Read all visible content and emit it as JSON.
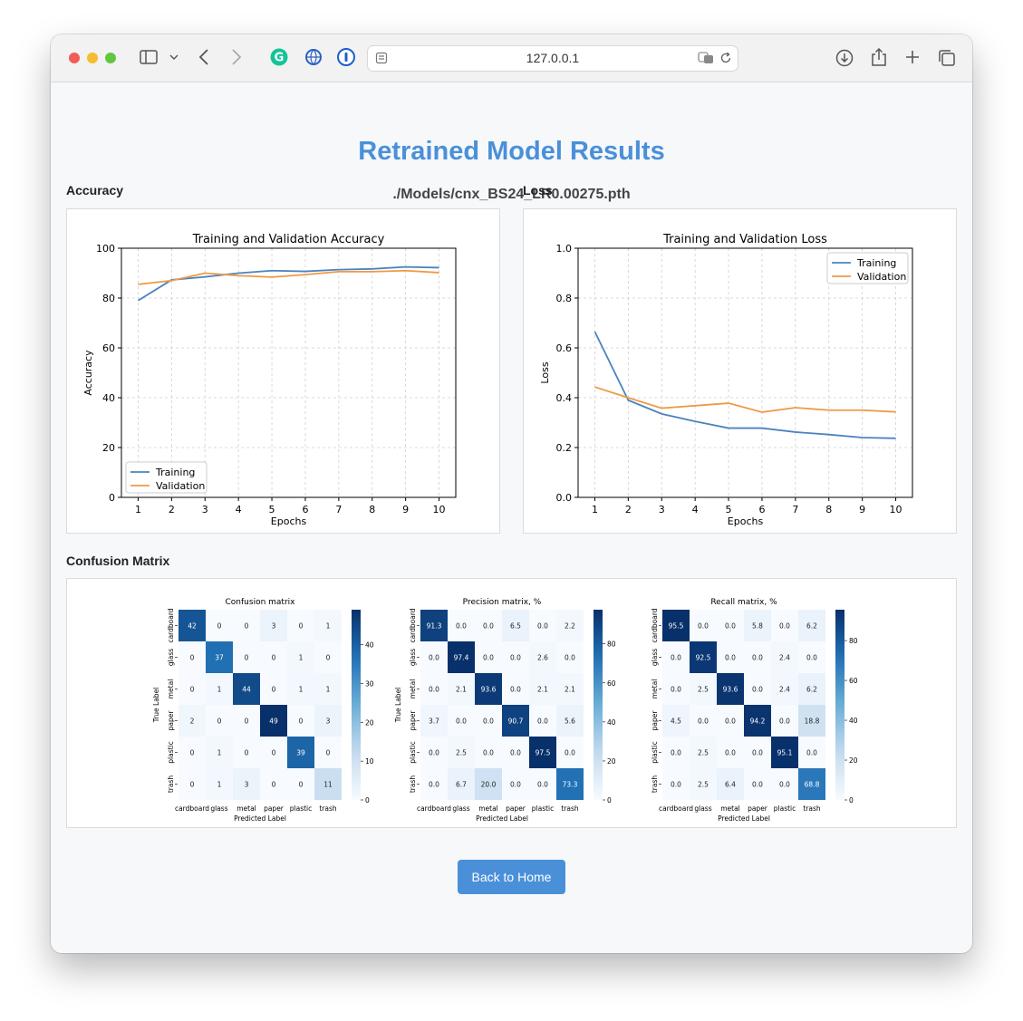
{
  "browser": {
    "url": "127.0.0.1",
    "traffic_colors": [
      "#ee5e56",
      "#f5bd2f",
      "#5fc83e"
    ]
  },
  "page": {
    "title": "Retrained Model Results",
    "model_path": "./Models/cnx_BS24_LR0.00275.pth",
    "accuracy_label": "Accuracy",
    "loss_label": "Loss",
    "confusion_label": "Confusion Matrix",
    "back_button": "Back to Home"
  },
  "colors": {
    "accent": "#4a90d9",
    "training": "#4a84bf",
    "validation": "#ee9a45"
  },
  "chart_data": [
    {
      "type": "line",
      "title": "Training and Validation Accuracy",
      "xlabel": "Epochs",
      "ylabel": "Accuracy",
      "x": [
        1,
        2,
        3,
        4,
        5,
        6,
        7,
        8,
        9,
        10
      ],
      "xlim": [
        0.5,
        10.5
      ],
      "ylim": [
        0,
        100
      ],
      "yticks": [
        0,
        20,
        40,
        60,
        80,
        100
      ],
      "grid": true,
      "legend": "lower-left",
      "series": [
        {
          "name": "Training",
          "values": [
            79,
            87.3,
            88.5,
            90,
            91,
            90.7,
            91.4,
            91.7,
            92.5,
            92.2
          ]
        },
        {
          "name": "Validation",
          "values": [
            85.5,
            87,
            90,
            89,
            88.4,
            89.4,
            90.6,
            90.6,
            91,
            90.2
          ]
        }
      ]
    },
    {
      "type": "line",
      "title": "Training and Validation Loss",
      "xlabel": "Epochs",
      "ylabel": "Loss",
      "x": [
        1,
        2,
        3,
        4,
        5,
        6,
        7,
        8,
        9,
        10
      ],
      "xlim": [
        0.5,
        10.5
      ],
      "ylim": [
        0,
        1.0
      ],
      "yticks": [
        "0.0",
        "0.2",
        "0.4",
        "0.6",
        "0.8",
        "1.0"
      ],
      "grid": true,
      "legend": "upper-right",
      "series": [
        {
          "name": "Training",
          "values": [
            0.665,
            0.39,
            0.335,
            0.305,
            0.278,
            0.278,
            0.262,
            0.252,
            0.24,
            0.237
          ]
        },
        {
          "name": "Validation",
          "values": [
            0.443,
            0.4,
            0.358,
            0.368,
            0.378,
            0.342,
            0.36,
            0.35,
            0.35,
            0.343
          ]
        }
      ]
    },
    {
      "type": "heatmap",
      "title": "Confusion matrix",
      "xlabel": "Predicted Label",
      "ylabel": "True Label",
      "labels": [
        "cardboard",
        "glass",
        "metal",
        "paper",
        "plastic",
        "trash"
      ],
      "colorbar_ticks": [
        0,
        10,
        20,
        30,
        40
      ],
      "vmax": 49,
      "values": [
        [
          "42",
          "0",
          "0",
          "3",
          "0",
          "1"
        ],
        [
          "0",
          "37",
          "0",
          "0",
          "1",
          "0"
        ],
        [
          "0",
          "1",
          "44",
          "0",
          "1",
          "1"
        ],
        [
          "2",
          "0",
          "0",
          "49",
          "0",
          "3"
        ],
        [
          "0",
          "1",
          "0",
          "0",
          "39",
          "0"
        ],
        [
          "0",
          "1",
          "3",
          "0",
          "0",
          "11"
        ]
      ]
    },
    {
      "type": "heatmap",
      "title": "Precision matrix, %",
      "xlabel": "Predicted Label",
      "ylabel": "True Label",
      "labels": [
        "cardboard",
        "glass",
        "metal",
        "paper",
        "plastic",
        "trash"
      ],
      "colorbar_ticks": [
        0,
        20,
        40,
        60,
        80
      ],
      "vmax": 97.5,
      "values": [
        [
          "91.3",
          "0.0",
          "0.0",
          "6.5",
          "0.0",
          "2.2"
        ],
        [
          "0.0",
          "97.4",
          "0.0",
          "0.0",
          "2.6",
          "0.0"
        ],
        [
          "0.0",
          "2.1",
          "93.6",
          "0.0",
          "2.1",
          "2.1"
        ],
        [
          "3.7",
          "0.0",
          "0.0",
          "90.7",
          "0.0",
          "5.6"
        ],
        [
          "0.0",
          "2.5",
          "0.0",
          "0.0",
          "97.5",
          "0.0"
        ],
        [
          "0.0",
          "6.7",
          "20.0",
          "0.0",
          "0.0",
          "73.3"
        ]
      ]
    },
    {
      "type": "heatmap",
      "title": "Recall matrix, %",
      "xlabel": "Predicted Label",
      "ylabel": "",
      "labels": [
        "cardboard",
        "glass",
        "metal",
        "paper",
        "plastic",
        "trash"
      ],
      "colorbar_ticks": [
        0,
        20,
        40,
        60,
        80
      ],
      "vmax": 95.5,
      "values": [
        [
          "95.5",
          "0.0",
          "0.0",
          "5.8",
          "0.0",
          "6.2"
        ],
        [
          "0.0",
          "92.5",
          "0.0",
          "0.0",
          "2.4",
          "0.0"
        ],
        [
          "0.0",
          "2.5",
          "93.6",
          "0.0",
          "2.4",
          "6.2"
        ],
        [
          "4.5",
          "0.0",
          "0.0",
          "94.2",
          "0.0",
          "18.8"
        ],
        [
          "0.0",
          "2.5",
          "0.0",
          "0.0",
          "95.1",
          "0.0"
        ],
        [
          "0.0",
          "2.5",
          "6.4",
          "0.0",
          "0.0",
          "68.8"
        ]
      ]
    }
  ]
}
